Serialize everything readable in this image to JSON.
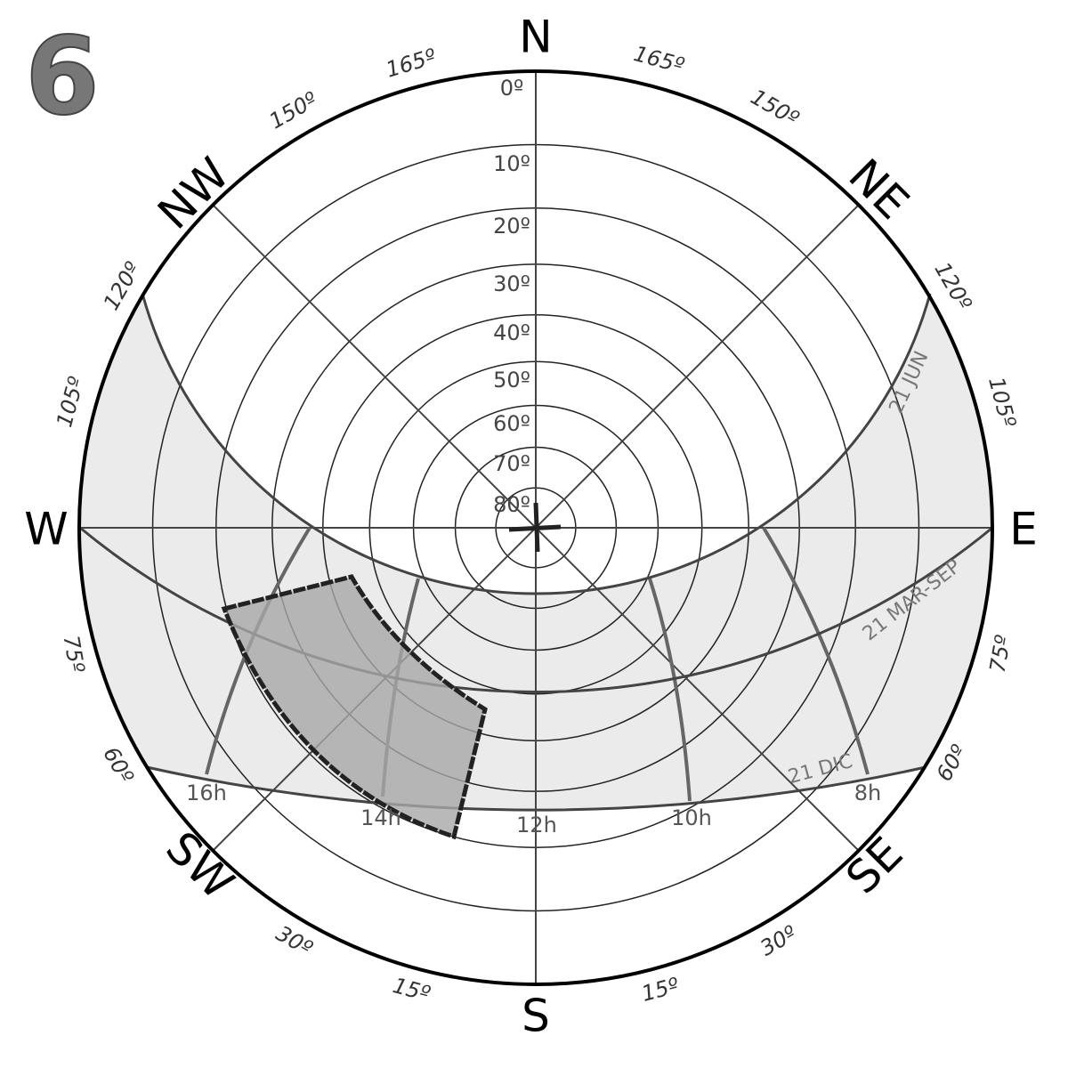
{
  "header": {
    "figure_number": "6"
  },
  "cardinals": [
    "N",
    "NE",
    "E",
    "SE",
    "S",
    "SW",
    "W",
    "NW"
  ],
  "azimuth_labels": {
    "left": [
      "165º",
      "150º",
      "120º",
      "105º",
      "75º",
      "60º",
      "30º",
      "15º"
    ],
    "right": [
      "165º",
      "150º",
      "120º",
      "105º",
      "75º",
      "60º",
      "30º",
      "15º"
    ]
  },
  "altitude_labels": [
    "0º",
    "10º",
    "20º",
    "30º",
    "40º",
    "50º",
    "60º",
    "70º",
    "80º"
  ],
  "date_labels": [
    "21 JUN",
    "21 MAR-SEP",
    "21 DIC"
  ],
  "hour_labels": [
    "16h",
    "14h",
    "12h",
    "10h",
    "8h"
  ]
}
